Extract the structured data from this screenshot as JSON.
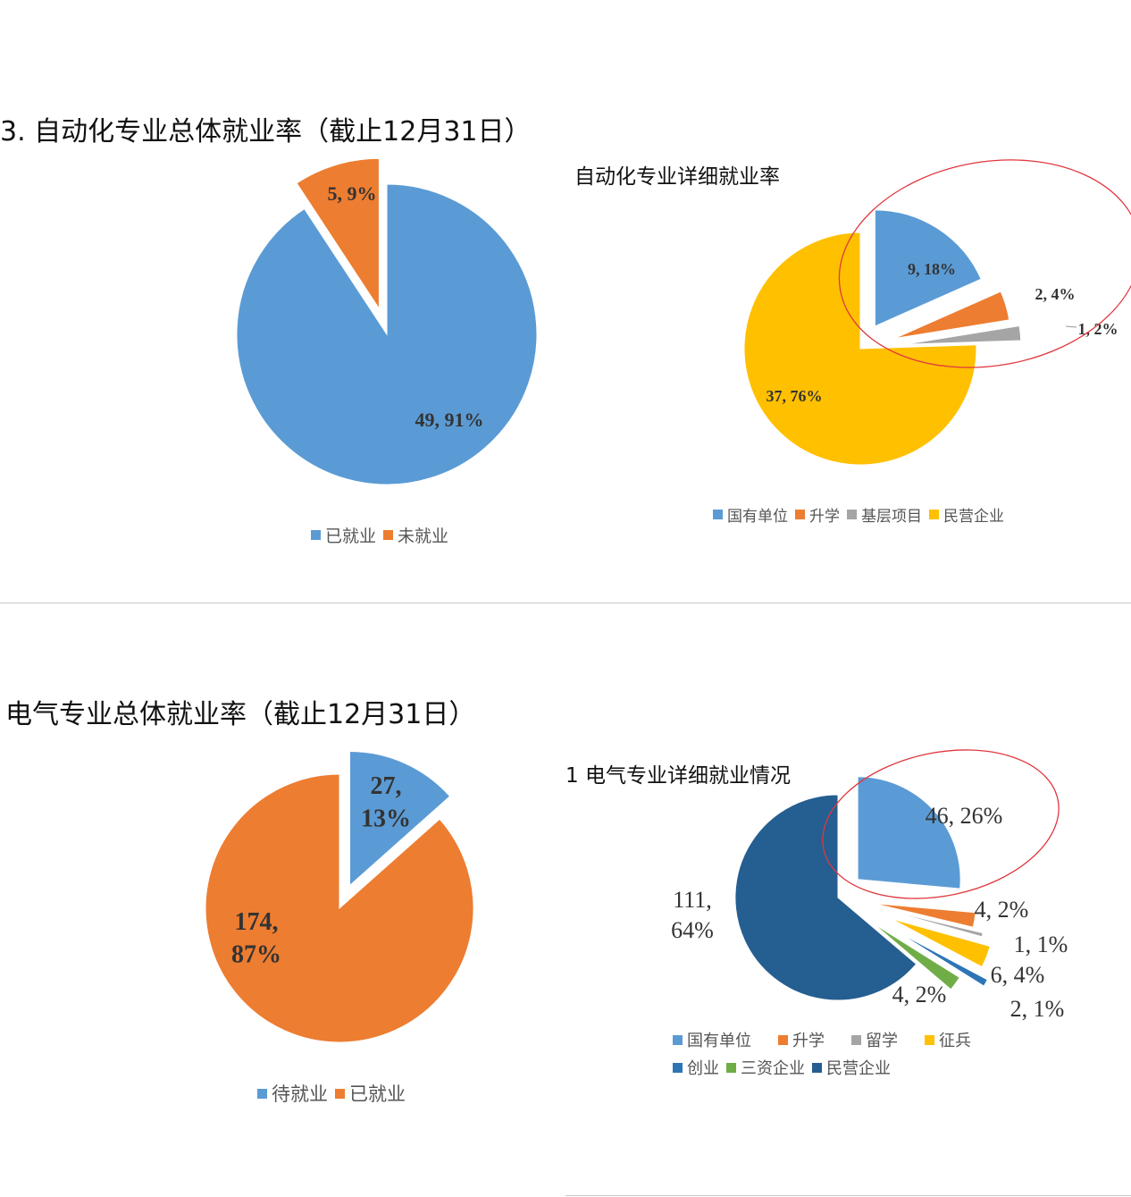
{
  "colors": {
    "blue": "#5B9BD5",
    "orange": "#ED7D31",
    "gray": "#A5A5A5",
    "gold": "#FFC000",
    "darkblue": "#2E75B6",
    "green": "#70AD47",
    "navy": "#255E91",
    "annotation": "#E0383E"
  },
  "chart_data": [
    {
      "type": "pie",
      "title": "3. 自动化专业总体就业率（截止12月31日）",
      "categories": [
        "已就业",
        "未就业"
      ],
      "values": [
        49,
        5
      ],
      "percents": [
        "91%",
        "9%"
      ],
      "data_labels": [
        "49, 91%",
        "5, 9%"
      ],
      "colors": [
        "#5B9BD5",
        "#ED7D31"
      ],
      "legend": "bottom"
    },
    {
      "type": "pie",
      "title": "自动化专业详细就业率",
      "categories": [
        "国有单位",
        "升学",
        "基层项目",
        "民营企业"
      ],
      "values": [
        9,
        2,
        1,
        37
      ],
      "percents": [
        "18%",
        "4%",
        "2%",
        "76%"
      ],
      "data_labels": [
        "9, 18%",
        "2, 4%",
        "1, 2%",
        "37, 76%"
      ],
      "colors": [
        "#5B9BD5",
        "#ED7D31",
        "#A5A5A5",
        "#FFC000"
      ],
      "legend": "bottom"
    },
    {
      "type": "pie",
      "title": "电气专业总体就业率（截止12月31日）",
      "categories": [
        "待就业",
        "已就业"
      ],
      "values": [
        27,
        174
      ],
      "percents": [
        "13%",
        "87%"
      ],
      "data_labels": [
        "27, 13%",
        "174, 87%"
      ],
      "colors": [
        "#5B9BD5",
        "#ED7D31"
      ],
      "legend": "bottom"
    },
    {
      "type": "pie",
      "title": "1 电气专业详细就业情况",
      "categories": [
        "国有单位",
        "升学",
        "留学",
        "征兵",
        "创业",
        "三资企业",
        "民营企业"
      ],
      "values": [
        46,
        4,
        1,
        6,
        2,
        4,
        111
      ],
      "percents": [
        "26%",
        "2%",
        "1%",
        "4%",
        "1%",
        "2%",
        "64%"
      ],
      "data_labels": [
        "46, 26%",
        "4, 2%",
        "1, 1%",
        "6, 4%",
        "2, 1%",
        "4, 2%",
        "111, 64%"
      ],
      "colors": [
        "#5B9BD5",
        "#ED7D31",
        "#A5A5A5",
        "#FFC000",
        "#2E75B6",
        "#70AD47",
        "#255E91"
      ],
      "legend": "bottom"
    }
  ]
}
